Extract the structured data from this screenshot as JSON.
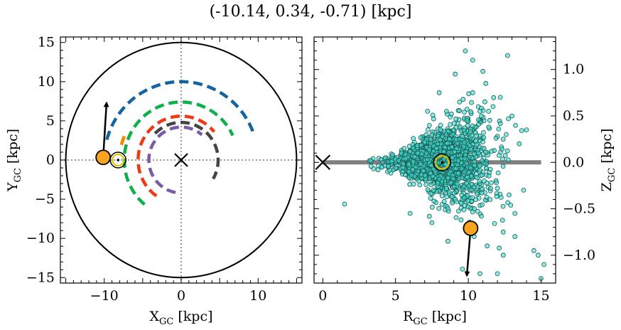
{
  "title": "(-10.14, 0.34, -0.71) [kpc]",
  "chart_data": [
    {
      "type": "line",
      "panel": "left",
      "xlabel": "X",
      "xlabel_sub": "GC",
      "xlabel_unit": " [kpc]",
      "ylabel": "Y",
      "ylabel_sub": "GC",
      "ylabel_unit": " [kpc]",
      "xlim": [
        -15.7,
        15.7
      ],
      "ylim": [
        -15.7,
        15.7
      ],
      "xticks": [
        -10,
        0,
        10
      ],
      "xtick_labels": [
        "−10",
        "0",
        "10"
      ],
      "yticks": [
        -15,
        -10,
        -5,
        0,
        5,
        10,
        15
      ],
      "ytick_labels": [
        "−15",
        "−10",
        "−5",
        "0",
        "5",
        "10",
        "15"
      ],
      "boundary_circle_radius": 15,
      "galactic_center": [
        0,
        0
      ],
      "arms": [
        {
          "color": "#1464a0",
          "radius": 10.0,
          "theta_start": 165,
          "theta_end": 20
        },
        {
          "color": "#0db04b",
          "radius": 7.4,
          "theta_start": 230,
          "theta_end": 25
        },
        {
          "color": "#f08c00",
          "radius": 8.0,
          "theta_start": 166,
          "theta_end": 155
        },
        {
          "color": "#ee3b15",
          "radius": 5.6,
          "theta_start": 235,
          "theta_end": 40
        },
        {
          "color": "#7b5aa6",
          "radius": 4.2,
          "theta_start": 260,
          "theta_end": 50
        },
        {
          "color": "#444444",
          "radius": 4.8,
          "theta_start": 135,
          "theta_end": -30
        }
      ],
      "sun": [
        -8.2,
        0.0
      ],
      "object": [
        -10.14,
        0.34
      ],
      "velocity_arrow_tip": [
        -9.7,
        7.3
      ]
    },
    {
      "type": "scatter",
      "panel": "right",
      "xlabel": "R",
      "xlabel_sub": "GC",
      "xlabel_unit": " [kpc]",
      "ylabel": "Z",
      "ylabel_sub": "GC",
      "ylabel_unit": " [kpc]",
      "xlim": [
        -0.6,
        16.0
      ],
      "ylim": [
        -1.3,
        1.35
      ],
      "xticks": [
        0,
        5,
        10,
        15
      ],
      "xtick_labels": [
        "0",
        "5",
        "10",
        "15"
      ],
      "yticks": [
        -1.0,
        -0.5,
        0.0,
        0.5,
        1.0
      ],
      "ytick_labels": [
        "−1.0",
        "−0.5",
        "0.0",
        "0.5",
        "1.0"
      ],
      "disk_plane": {
        "x_start": 0,
        "x_end": 15,
        "z": 0
      },
      "galactic_center": [
        0,
        0
      ],
      "sun": [
        8.2,
        0.0
      ],
      "object": [
        10.16,
        -0.71
      ],
      "velocity_arrow_tip": [
        9.9,
        -1.22
      ],
      "scatter_color": "#40e0d0",
      "points": [
        [
          1.5,
          -0.45
        ],
        [
          3.3,
          0.02
        ],
        [
          3.8,
          -0.08
        ],
        [
          4.0,
          0.03
        ],
        [
          4.3,
          0.05
        ],
        [
          4.5,
          -0.04
        ],
        [
          4.8,
          0.08
        ],
        [
          5.0,
          -0.06
        ],
        [
          5.2,
          0.02
        ],
        [
          5.4,
          0.1
        ],
        [
          5.5,
          -0.1
        ],
        [
          5.7,
          0.04
        ],
        [
          5.9,
          -0.02
        ],
        [
          6.0,
          0.12
        ],
        [
          6.1,
          -0.14
        ],
        [
          6.3,
          0.06
        ],
        [
          6.4,
          -0.05
        ],
        [
          6.5,
          0.18
        ],
        [
          6.6,
          -0.2
        ],
        [
          6.8,
          0.09
        ],
        [
          6.9,
          -0.09
        ],
        [
          7.0,
          0.22
        ],
        [
          7.1,
          -0.24
        ],
        [
          7.2,
          0.03
        ],
        [
          7.3,
          0.14
        ],
        [
          7.4,
          -0.12
        ],
        [
          7.5,
          0.3
        ],
        [
          7.6,
          -0.3
        ],
        [
          7.7,
          0.07
        ],
        [
          7.8,
          -0.04
        ],
        [
          7.9,
          0.2
        ],
        [
          8.0,
          -0.18
        ],
        [
          8.1,
          0.4
        ],
        [
          8.2,
          -0.36
        ],
        [
          8.3,
          0.11
        ],
        [
          8.4,
          -0.08
        ],
        [
          8.5,
          0.55
        ],
        [
          8.6,
          -0.5
        ],
        [
          8.7,
          0.25
        ],
        [
          8.8,
          -0.22
        ],
        [
          8.9,
          0.05
        ],
        [
          9.0,
          0.35
        ],
        [
          9.1,
          -0.4
        ],
        [
          9.2,
          0.15
        ],
        [
          9.3,
          -0.12
        ],
        [
          9.4,
          0.65
        ],
        [
          9.5,
          -0.62
        ],
        [
          9.6,
          0.28
        ],
        [
          9.7,
          -0.26
        ],
        [
          9.8,
          0.08
        ],
        [
          9.9,
          0.45
        ],
        [
          10.0,
          -0.48
        ],
        [
          10.1,
          0.18
        ],
        [
          10.2,
          -0.15
        ],
        [
          10.3,
          0.75
        ],
        [
          10.4,
          -0.8
        ],
        [
          10.5,
          0.32
        ],
        [
          10.6,
          -0.34
        ],
        [
          10.7,
          0.1
        ],
        [
          10.8,
          0.55
        ],
        [
          10.9,
          -0.58
        ],
        [
          11.0,
          0.22
        ],
        [
          11.1,
          -0.2
        ],
        [
          11.2,
          0.85
        ],
        [
          11.3,
          -0.9
        ],
        [
          11.4,
          0.38
        ],
        [
          11.5,
          -0.4
        ],
        [
          11.6,
          0.12
        ],
        [
          11.7,
          0.6
        ],
        [
          11.8,
          -0.66
        ],
        [
          11.9,
          0.26
        ],
        [
          12.0,
          -0.28
        ],
        [
          12.2,
          0.7
        ],
        [
          12.4,
          -0.75
        ],
        [
          12.6,
          0.3
        ],
        [
          12.8,
          -0.35
        ],
        [
          13.0,
          0.5
        ],
        [
          13.2,
          -0.55
        ],
        [
          13.5,
          0.2
        ],
        [
          13.8,
          -0.3
        ],
        [
          14.0,
          0.35
        ],
        [
          14.5,
          -0.95
        ],
        [
          14.8,
          -1.0
        ],
        [
          15.0,
          -1.25
        ],
        [
          15.2,
          -1.1
        ],
        [
          9.8,
          1.2
        ],
        [
          10.3,
          1.1
        ],
        [
          12.7,
          1.15
        ],
        [
          9.1,
          0.95
        ],
        [
          11.0,
          0.98
        ],
        [
          8.0,
          0.75
        ],
        [
          7.2,
          0.55
        ],
        [
          6.0,
          -0.55
        ],
        [
          7.5,
          -0.65
        ],
        [
          10.8,
          -1.2
        ],
        [
          12.0,
          -1.2
        ],
        [
          12.4,
          -1.0
        ],
        [
          13.2,
          -0.8
        ],
        [
          8.6,
          -0.85
        ],
        [
          9.6,
          -1.15
        ]
      ]
    }
  ]
}
